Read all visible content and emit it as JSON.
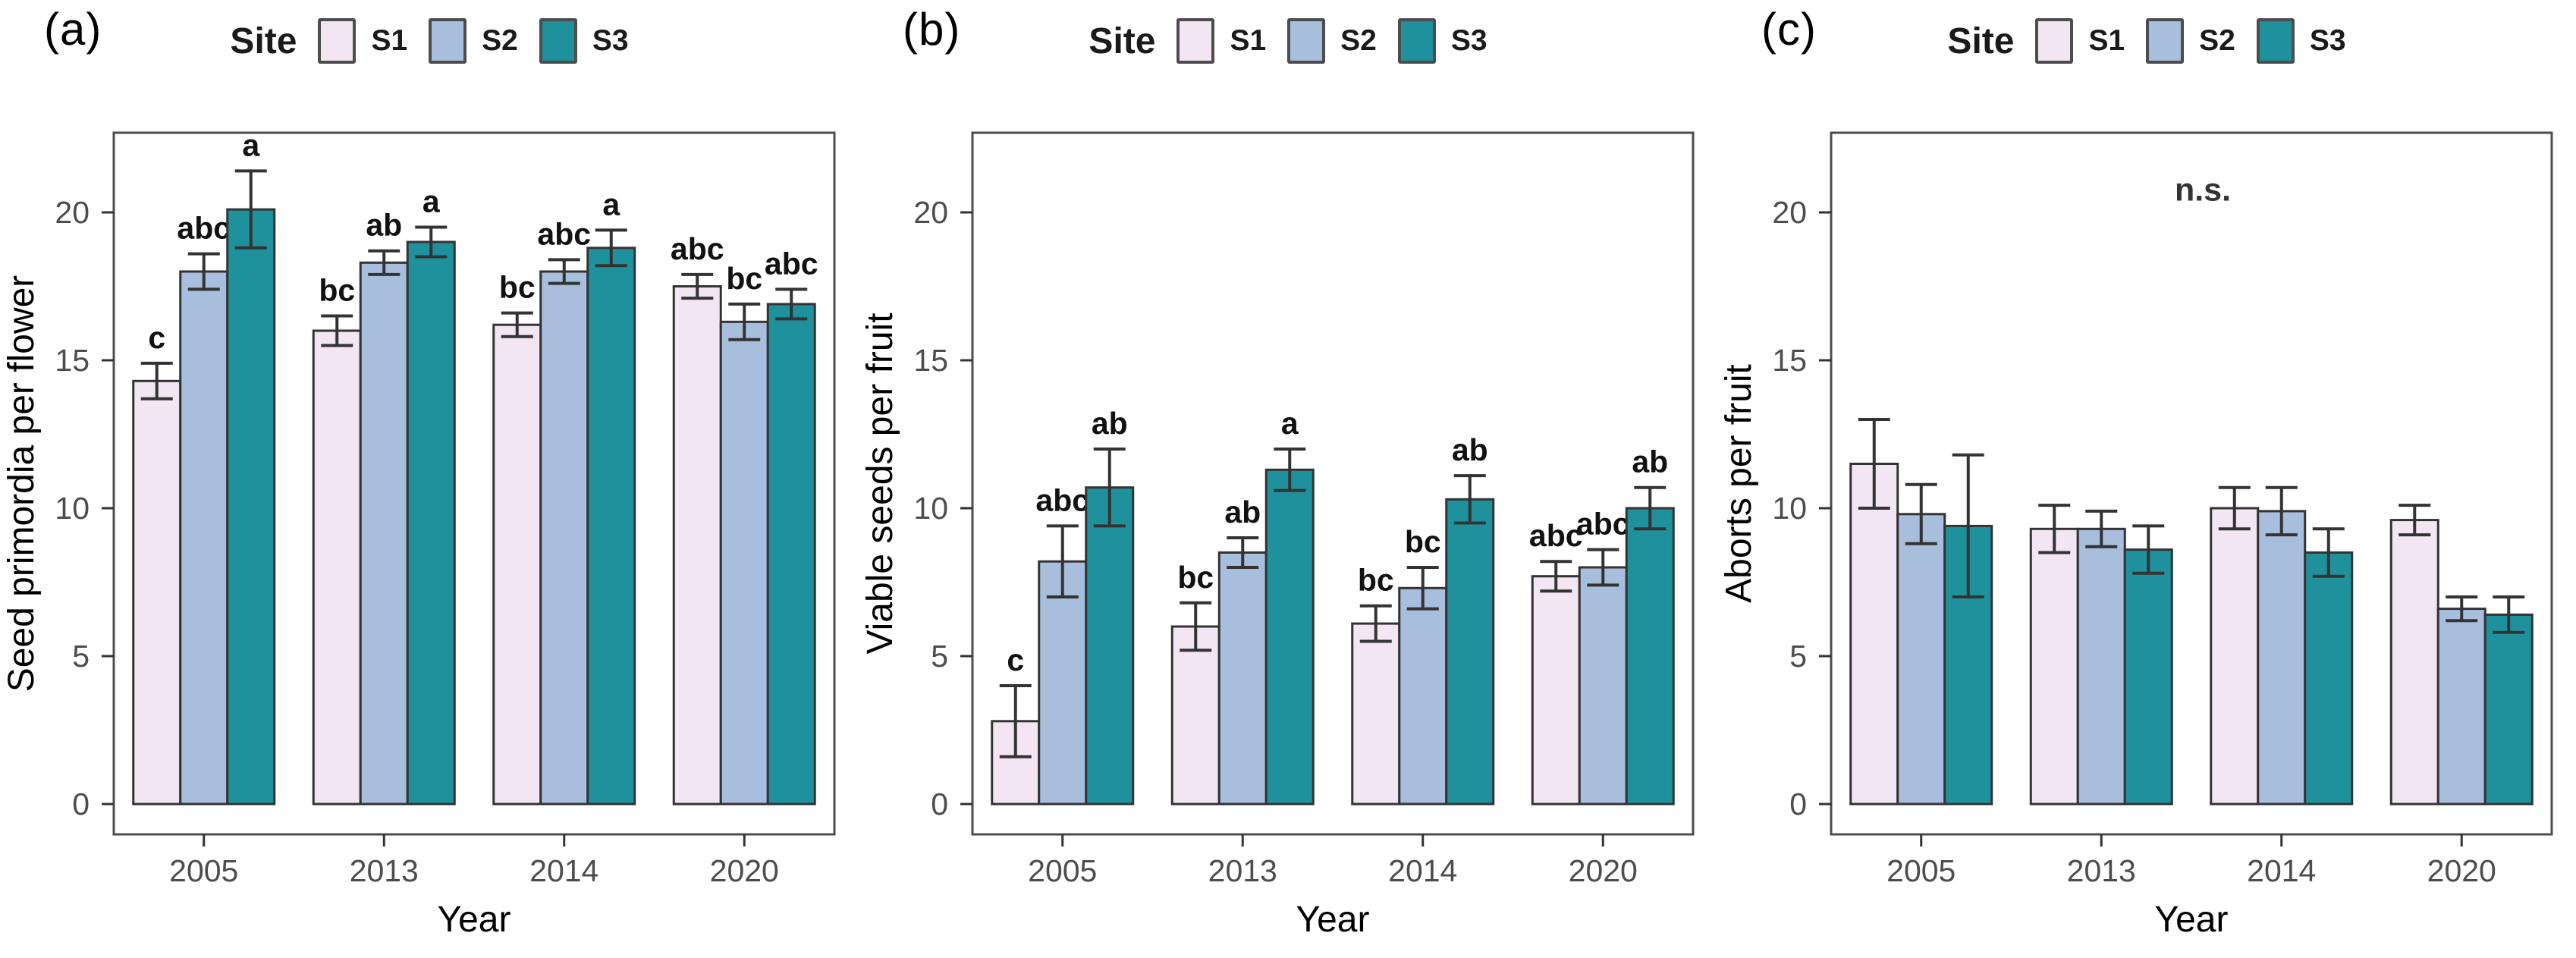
{
  "figure": {
    "background": "#ffffff",
    "axis_color": "#4d4d4d",
    "bar_outline_color": "#333333",
    "error_bar_color": "#333333"
  },
  "chart_data": [
    {
      "type": "bar",
      "panel_label": "(a)",
      "xlabel": "Year",
      "ylabel": "Seed primordia per flower",
      "categories": [
        "2005",
        "2013",
        "2014",
        "2020"
      ],
      "yticks": [
        0,
        5,
        10,
        15,
        20
      ],
      "ylim": [
        0,
        22.5
      ],
      "grid": "off",
      "legend": {
        "title": "Site",
        "position": "top",
        "entries": [
          "S1",
          "S2",
          "S3"
        ]
      },
      "series": [
        {
          "name": "S1",
          "color": "#f3e6f3",
          "values": [
            14.3,
            16.0,
            16.2,
            17.5
          ],
          "errors": [
            0.6,
            0.5,
            0.4,
            0.4
          ],
          "letters": [
            "c",
            "bc",
            "bc",
            "abc"
          ]
        },
        {
          "name": "S2",
          "color": "#a8bedd",
          "values": [
            18.0,
            18.3,
            18.0,
            16.3
          ],
          "errors": [
            0.6,
            0.4,
            0.4,
            0.6
          ],
          "letters": [
            "abc",
            "ab",
            "abc",
            "bc"
          ]
        },
        {
          "name": "S3",
          "color": "#1e919c",
          "values": [
            20.1,
            19.0,
            18.8,
            16.9
          ],
          "errors": [
            1.3,
            0.5,
            0.6,
            0.5
          ],
          "letters": [
            "a",
            "a",
            "a",
            "abc"
          ]
        }
      ],
      "annotation": ""
    },
    {
      "type": "bar",
      "panel_label": "(b)",
      "xlabel": "Year",
      "ylabel": "Viable seeds per fruit",
      "categories": [
        "2005",
        "2013",
        "2014",
        "2020"
      ],
      "yticks": [
        0,
        5,
        10,
        15,
        20
      ],
      "ylim": [
        0,
        22.5
      ],
      "grid": "off",
      "legend": {
        "title": "Site",
        "position": "top",
        "entries": [
          "S1",
          "S2",
          "S3"
        ]
      },
      "series": [
        {
          "name": "S1",
          "color": "#f3e6f3",
          "values": [
            2.8,
            6.0,
            6.1,
            7.7
          ],
          "errors": [
            1.2,
            0.8,
            0.6,
            0.5
          ],
          "letters": [
            "c",
            "bc",
            "bc",
            "abc"
          ]
        },
        {
          "name": "S2",
          "color": "#a8bedd",
          "values": [
            8.2,
            8.5,
            7.3,
            8.0
          ],
          "errors": [
            1.2,
            0.5,
            0.7,
            0.6
          ],
          "letters": [
            "abc",
            "ab",
            "bc",
            "abc"
          ]
        },
        {
          "name": "S3",
          "color": "#1e919c",
          "values": [
            10.7,
            11.3,
            10.3,
            10.0
          ],
          "errors": [
            1.3,
            0.7,
            0.8,
            0.7
          ],
          "letters": [
            "ab",
            "a",
            "ab",
            "ab"
          ]
        }
      ],
      "annotation": ""
    },
    {
      "type": "bar",
      "panel_label": "(c)",
      "xlabel": "Year",
      "ylabel": "Aborts per fruit",
      "categories": [
        "2005",
        "2013",
        "2014",
        "2020"
      ],
      "yticks": [
        0,
        5,
        10,
        15,
        20
      ],
      "ylim": [
        0,
        22.5
      ],
      "grid": "off",
      "legend": {
        "title": "Site",
        "position": "top",
        "entries": [
          "S1",
          "S2",
          "S3"
        ]
      },
      "series": [
        {
          "name": "S1",
          "color": "#f3e6f3",
          "values": [
            11.5,
            9.3,
            10.0,
            9.6
          ],
          "errors": [
            1.5,
            0.8,
            0.7,
            0.5
          ],
          "letters": [
            "",
            "",
            "",
            ""
          ]
        },
        {
          "name": "S2",
          "color": "#a8bedd",
          "values": [
            9.8,
            9.3,
            9.9,
            6.6
          ],
          "errors": [
            1.0,
            0.6,
            0.8,
            0.4
          ],
          "letters": [
            "",
            "",
            "",
            ""
          ]
        },
        {
          "name": "S3",
          "color": "#1e919c",
          "values": [
            9.4,
            8.6,
            8.5,
            6.4
          ],
          "errors": [
            2.4,
            0.8,
            0.8,
            0.6
          ],
          "letters": [
            "",
            "",
            "",
            ""
          ]
        }
      ],
      "annotation": "n.s."
    }
  ]
}
